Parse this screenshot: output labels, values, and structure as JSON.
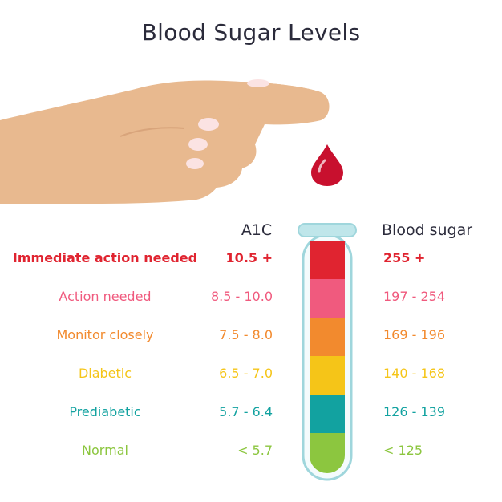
{
  "title": "Blood Sugar Levels",
  "headers": {
    "a1c": "A1C",
    "blood_sugar": "Blood sugar"
  },
  "levels": [
    {
      "label": "Immediate action needed",
      "a1c": "10.5 +",
      "blood_sugar": "255 +",
      "color": "#e02430",
      "bold": true
    },
    {
      "label": "Action needed",
      "a1c": "8.5 - 10.0",
      "blood_sugar": "197 - 254",
      "color": "#f05a7e",
      "bold": false
    },
    {
      "label": "Monitor closely",
      "a1c": "7.5 - 8.0",
      "blood_sugar": "169 - 196",
      "color": "#f28a2e",
      "bold": false
    },
    {
      "label": "Diabetic",
      "a1c": "6.5 - 7.0",
      "blood_sugar": "140 - 168",
      "color": "#f5c518",
      "bold": false
    },
    {
      "label": "Prediabetic",
      "a1c": "5.7 - 6.4",
      "blood_sugar": "126 - 139",
      "color": "#12a2a0",
      "bold": false
    },
    {
      "label": "Normal",
      "a1c": "< 5.7",
      "blood_sugar": "< 125",
      "color": "#8cc63f",
      "bold": false
    }
  ],
  "illustrations": {
    "hand": "pointing-hand-icon",
    "drop": "blood-drop-icon",
    "tube": "test-tube-icon"
  },
  "colors": {
    "skin": "#e8b98f",
    "nail": "#fbe3e3",
    "blood": "#c8102e",
    "tube_outline": "#9fd6dc",
    "text": "#2b2b3b"
  }
}
